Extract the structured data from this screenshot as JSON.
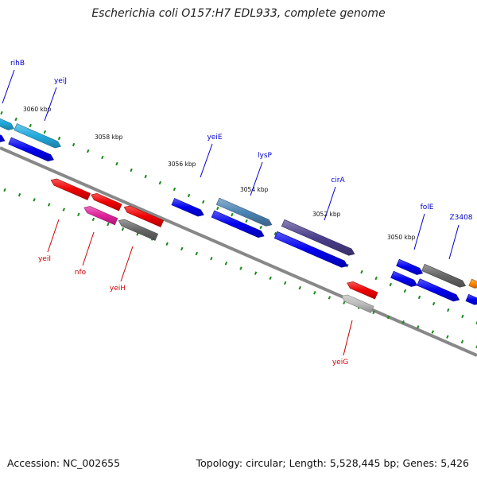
{
  "title": "Escherichia coli O157:H7 EDL933, complete genome",
  "footer": {
    "accession": "Accession: NC_002655",
    "summary": "Topology: circular; Length: 5,528,445 bp; Genes: 5,426"
  },
  "colors": {
    "backbone": "#888888",
    "tick": "#1a8a1a",
    "forward_label": "#0000cc",
    "reverse_label": "#cc0000",
    "blue": "#0000ee",
    "light_blue": "#22aadd",
    "steel_blue": "#4c84b4",
    "slate_blue": "#4a3f8c",
    "red": "#ee0000",
    "magenta": "#e0209a",
    "gray": "#666666",
    "light_gray": "#bbbbbb",
    "orange": "#ff8800"
  },
  "scale_labels": [
    "3060 kbp",
    "3058 kbp",
    "3056 kbp",
    "3054 kbp",
    "3052 kbp",
    "3050 kbp"
  ],
  "forward_genes": [
    {
      "label": "rihB",
      "color": "light_blue"
    },
    {
      "label": "yeiJ",
      "color": "light_blue"
    },
    {
      "label": "",
      "color": "blue"
    },
    {
      "label": "yeiE",
      "color": "blue"
    },
    {
      "label": "lysP",
      "color": "steel_blue"
    },
    {
      "label": "",
      "color": "blue"
    },
    {
      "label": "cirA",
      "color": "slate_blue"
    },
    {
      "label": "",
      "color": "blue"
    },
    {
      "label": "folE",
      "color": "blue"
    },
    {
      "label": "Z3408",
      "color": "gray"
    },
    {
      "label": "",
      "color": "blue"
    },
    {
      "label": "",
      "color": "orange"
    }
  ],
  "reverse_genes": [
    {
      "label": "yeiI",
      "color": "red"
    },
    {
      "label": "",
      "color": "red"
    },
    {
      "label": "nfo",
      "color": "magenta"
    },
    {
      "label": "",
      "color": "red"
    },
    {
      "label": "yeiH",
      "color": "gray"
    },
    {
      "label": "",
      "color": "red"
    },
    {
      "label": "yeiG",
      "color": "light_gray"
    }
  ]
}
